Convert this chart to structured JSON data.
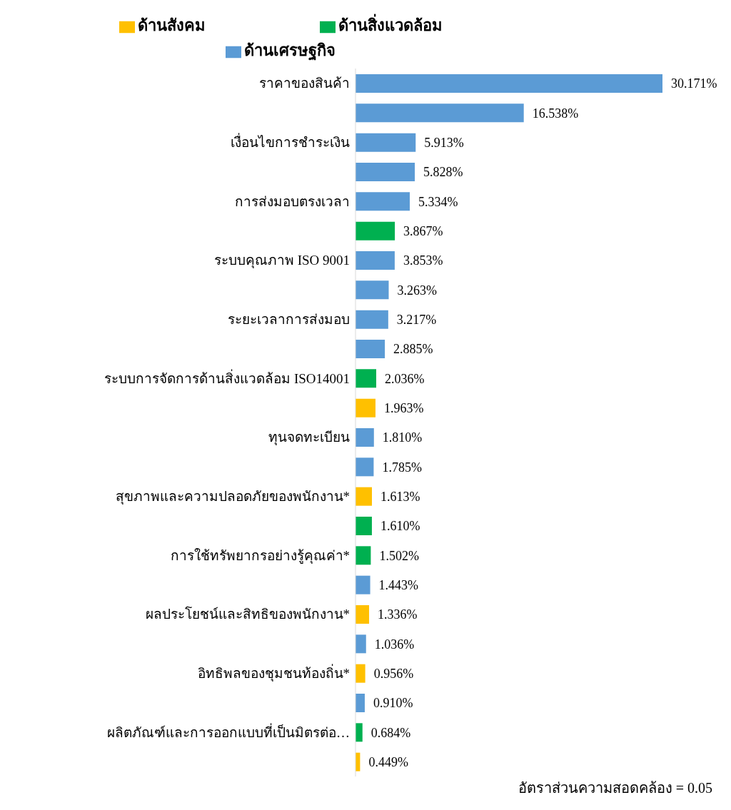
{
  "chart_data": {
    "type": "bar",
    "orientation": "horizontal",
    "stacked": true,
    "legend": "top",
    "grid": false,
    "categories": [
      "ราคาของสินค้า",
      null,
      "เงื่อนไขการชำระเงิน",
      null,
      "การส่งมอบตรงเวลา",
      null,
      "ระบบคุณภาพ ISO 9001",
      null,
      "ระยะเวลาการส่งมอบ",
      null,
      "ระบบการจัดการด้านสิ่งแวดล้อม ISO14001",
      null,
      "ทุนจดทะเบียน",
      null,
      "สุขภาพและความปลอดภัยของพนักงาน*",
      null,
      "การใช้ทรัพยากรอย่างรู้คุณค่า*",
      null,
      "ผลประโยชน์และสิทธิของพนักงาน*",
      null,
      "อิทธิพลของชุมชนท้องถิ่น*",
      null,
      "ผลิตภัณฑ์และการออกแบบที่เป็นมิตรต่อ…",
      null
    ],
    "series": [
      {
        "name": "ด้านเศรษฐกิจ",
        "color": "#5b9bd5",
        "values": [
          30.171,
          16.538,
          5.913,
          5.828,
          5.334,
          null,
          3.853,
          3.263,
          3.217,
          2.885,
          null,
          null,
          1.81,
          1.785,
          null,
          null,
          null,
          1.443,
          null,
          1.036,
          null,
          0.91,
          null,
          null
        ],
        "value_labels": [
          "30.171%",
          "16.538%",
          "5.913%",
          "5.828%",
          "5.334%",
          null,
          "3.853%",
          "3.263%",
          "3.217%",
          "2.885%",
          null,
          null,
          "1.810%",
          "1.785%",
          null,
          null,
          null,
          "1.443%",
          null,
          "1.036%",
          null,
          "0.910%",
          null,
          null
        ]
      },
      {
        "name": "ด้านสิ่งแวดล้อม",
        "color": "#00b050",
        "values": [
          null,
          null,
          null,
          null,
          null,
          3.867,
          null,
          null,
          null,
          null,
          2.036,
          null,
          null,
          null,
          null,
          1.61,
          1.502,
          null,
          null,
          null,
          null,
          null,
          0.684,
          null
        ],
        "value_labels": [
          null,
          null,
          null,
          null,
          null,
          "3.867%",
          null,
          null,
          null,
          null,
          "2.036%",
          null,
          null,
          null,
          null,
          "1.610%",
          "1.502%",
          null,
          null,
          null,
          null,
          null,
          "0.684%",
          null
        ]
      },
      {
        "name": "ด้านสังคม",
        "color": "#ffc000",
        "values": [
          null,
          null,
          null,
          null,
          null,
          null,
          null,
          null,
          null,
          null,
          null,
          1.963,
          null,
          null,
          1.613,
          null,
          null,
          null,
          1.336,
          null,
          0.956,
          null,
          null,
          0.449
        ],
        "value_labels": [
          null,
          null,
          null,
          null,
          null,
          null,
          null,
          null,
          null,
          null,
          null,
          "1.963%",
          null,
          null,
          "1.613%",
          null,
          null,
          null,
          "1.336%",
          null,
          "0.956%",
          null,
          null,
          "0.449%"
        ]
      }
    ],
    "annotations": [
      "อัตราส่วนความสอดคล้อง = 0.05"
    ]
  }
}
